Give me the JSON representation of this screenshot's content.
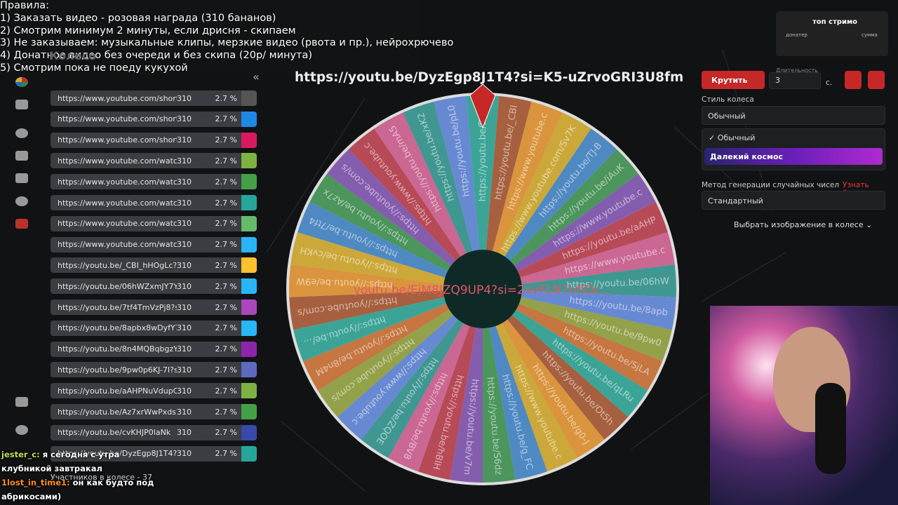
{
  "rules": {
    "title": "Правила:",
    "items": [
      "1) Заказать видео - розовая награда (310 бананов)",
      "2) Смотрим минимум 2 минуты, если дрисня - скипаем",
      "3) Не заказываем: музыкальные клипы, мерзкие видео (рвота и пр.), нейрохрючево",
      "4) Донатное видео без очереди и без скипа (20р/ минута)",
      "5) Смотрим пока не поеду кукухой"
    ]
  },
  "app": {
    "title": "Колесо",
    "collapse": "«"
  },
  "list": {
    "items": [
      {
        "url": "https://www.youtube.com/shorts/...",
        "amount": "310",
        "percent": "2.7 %"
      },
      {
        "url": "https://www.youtube.com/shorts/...",
        "amount": "310",
        "percent": "2.7 %"
      },
      {
        "url": "https://www.youtube.com/shorts/...",
        "amount": "310",
        "percent": "2.7 %"
      },
      {
        "url": "https://www.youtube.com/watch?...",
        "amount": "310",
        "percent": "2.7 %"
      },
      {
        "url": "https://www.youtube.com/watch?...",
        "amount": "310",
        "percent": "2.7 %"
      },
      {
        "url": "https://www.youtube.com/watch?...",
        "amount": "310",
        "percent": "2.7 %"
      },
      {
        "url": "https://www.youtube.com/watch?...",
        "amount": "310",
        "percent": "2.7 %"
      },
      {
        "url": "https://www.youtube.com/watch?...",
        "amount": "310",
        "percent": "2.7 %"
      },
      {
        "url": "https://youtu.be/_CBI_hHOgLc?si...",
        "amount": "310",
        "percent": "2.7 %"
      },
      {
        "url": "https://youtu.be/06hWZxmJY7Y?...",
        "amount": "310",
        "percent": "2.7 %"
      },
      {
        "url": "https://youtu.be/7tf4TmVzPj8?si=...",
        "amount": "310",
        "percent": "2.7 %"
      },
      {
        "url": "https://youtu.be/8apbx8wDyfY?si...",
        "amount": "310",
        "percent": "2.7 %"
      },
      {
        "url": "https://youtu.be/8n4MQBqbgzY?...",
        "amount": "310",
        "percent": "2.7 %"
      },
      {
        "url": "https://youtu.be/9pw0p6KJ-7I?si...",
        "amount": "310",
        "percent": "2.7 %"
      },
      {
        "url": "https://youtu.be/aAHPNuVdupQ?...",
        "amount": "310",
        "percent": "2.7 %"
      },
      {
        "url": "https://youtu.be/Az7xrWwPxds?si...",
        "amount": "310",
        "percent": "2.7 %"
      },
      {
        "url": "https://youtu.be/cvKHJP0laNk",
        "amount": "310",
        "percent": "2.7 %"
      },
      {
        "url": "https://youtu.be/DyzEgp8J1T4?si...",
        "amount": "310",
        "percent": "2.7 %"
      }
    ],
    "participants": "Участников в колесе - 37"
  },
  "wheel": {
    "current": "https://youtu.be/DyzEgp8J1T4?si=K5-uZrvoGRI3U8fm",
    "center": "youtu.be/EjM8JZQ9UP4?si=2xvFLN7nffOc...",
    "segments": [
      "https://youtu.be/DyzE",
      "https://youtu.be/_CBI",
      "https://www.youtube.c",
      "https://www.youtube.com/Sv7K",
      "https://youtu.be/TJ-B",
      "https://youtu.be/iAuK",
      "https://www.youtube.c",
      "https://youtu.be/aAHP",
      "https://www.youtube.c",
      "https://youtu.be/06hW",
      "https://youtu.be/8apb",
      "https://youtu.be/9pw0",
      "https://youtu.be/SjLA",
      "https://youtu.be/qLRu",
      "https://youtu.be/Ot5h",
      "https://youtu.be/g0-J",
      "https://www.youtube.c",
      "https://youtu.be/g_FC",
      "https://youtu.be/S6dz",
      "https://youtu.be/v7m",
      "https://youtu.be/hBlH",
      "https://youtu.be/BV8",
      "https://youtu.be/ZQOE",
      "https://www.youtube.c",
      "https://youtube.com/s",
      "https://youtu.be/8n4M",
      "https://youtu.be/...",
      "https://youtube.com/s",
      "https://youtu.be/e9W",
      "https://youtu.be/cvKH",
      "https://youtu.be/7tf4",
      "https://youtu.be/Az7x",
      "https://youtube.com/s",
      "https://www.youtube.c",
      "https://youtu.be/mA5",
      "https://youtu.be/xK2",
      "https://youtu.be/pL0"
    ]
  },
  "controls": {
    "spin": "Крутить",
    "duration_label": "Длительность",
    "duration": "3",
    "unit": "с.",
    "style_label": "Стиль колеса",
    "style_value": "Обычный",
    "options": [
      "Обычный",
      "Далекий космос"
    ],
    "rng_label": "Метод генерации случайных чисел",
    "learn_more": "Узнать больше",
    "rng_value": "Стандартный",
    "image_select": "Выбрать изображение в колесе"
  },
  "overlay": {
    "title": "топ стримо",
    "donor": "донатер",
    "sum": "сумма"
  },
  "chat": [
    {
      "user": "jester_c:",
      "text": "я сегодня с утра клубникой завтракал"
    },
    {
      "user": "1lost_in_time1:",
      "text": "он как будто под абрикосами)"
    }
  ]
}
